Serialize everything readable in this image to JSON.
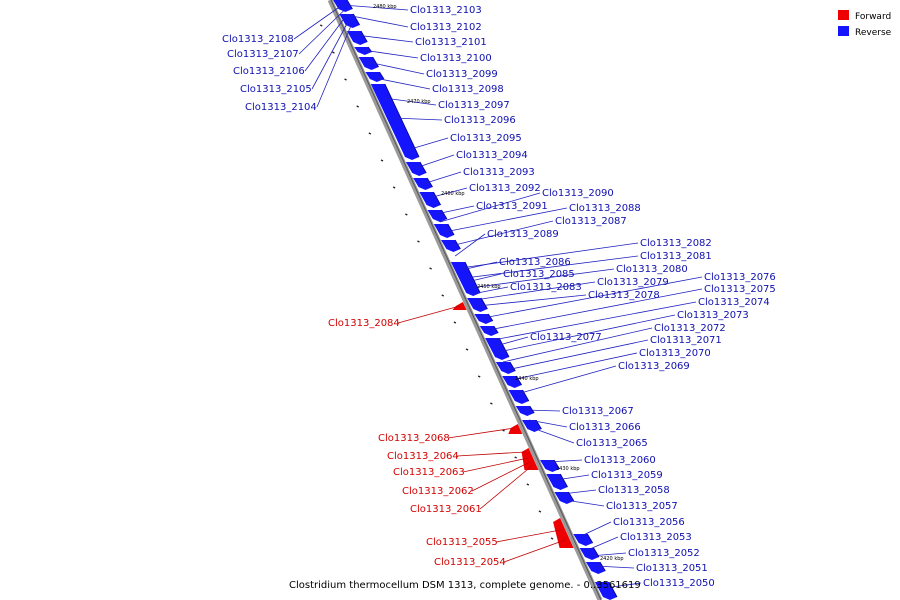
{
  "caption": "Clostridium thermocellum DSM 1313, complete genome. - 0..3561619",
  "legend": [
    {
      "key": "forward",
      "label": "Forward",
      "color": "#ee0000"
    },
    {
      "key": "reverse",
      "label": "Reverse",
      "color": "#1414ff"
    }
  ],
  "ticks": [
    "2480 kbp",
    "2470 kbp",
    "2460 kbp",
    "2450 kbp",
    "2440 kbp",
    "2430 kbp",
    "2420 kbp"
  ],
  "reverse_labels": [
    "Clo1313_2108",
    "Clo1313_2107",
    "Clo1313_2106",
    "Clo1313_2105",
    "Clo1313_2104",
    "Clo1313_2103",
    "Clo1313_2102",
    "Clo1313_2101",
    "Clo1313_2100",
    "Clo1313_2099",
    "Clo1313_2098",
    "Clo1313_2097",
    "Clo1313_2096",
    "Clo1313_2095",
    "Clo1313_2094",
    "Clo1313_2093",
    "Clo1313_2092",
    "Clo1313_2091",
    "Clo1313_2090",
    "Clo1313_2088",
    "Clo1313_2087",
    "Clo1313_2089",
    "Clo1313_2082",
    "Clo1313_2081",
    "Clo1313_2086",
    "Clo1313_2080",
    "Clo1313_2085",
    "Clo1313_2079",
    "Clo1313_2083",
    "Clo1313_2076",
    "Clo1313_2078",
    "Clo1313_2075",
    "Clo1313_2074",
    "Clo1313_2073",
    "Clo1313_2072",
    "Clo1313_2077",
    "Clo1313_2071",
    "Clo1313_2070",
    "Clo1313_2069",
    "Clo1313_2067",
    "Clo1313_2066",
    "Clo1313_2065",
    "Clo1313_2060",
    "Clo1313_2059",
    "Clo1313_2058",
    "Clo1313_2057",
    "Clo1313_2056",
    "Clo1313_2053",
    "Clo1313_2052",
    "Clo1313_2051",
    "Clo1313_2050"
  ],
  "forward_labels": [
    "Clo1313_2084",
    "Clo1313_2068",
    "Clo1313_2064",
    "Clo1313_2063",
    "Clo1313_2062",
    "Clo1313_2061",
    "Clo1313_2055",
    "Clo1313_2054"
  ]
}
